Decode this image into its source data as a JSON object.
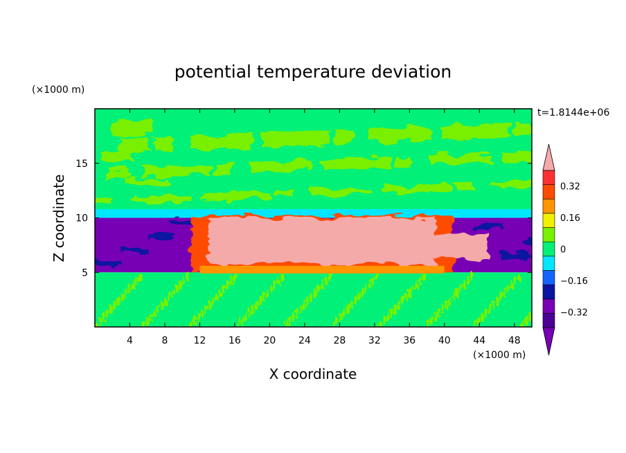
{
  "chart_data": {
    "type": "heatmap",
    "title": "potential temperature deviation",
    "xlabel": "X coordinate",
    "ylabel": "Z coordinate",
    "x_unit": "(×1000 m)",
    "y_unit": "(×1000 m)",
    "time_label": "t=1.8144e+06",
    "xlim": [
      0,
      50
    ],
    "ylim": [
      0,
      20
    ],
    "x_ticks": [
      4,
      8,
      12,
      16,
      20,
      24,
      28,
      32,
      36,
      40,
      44,
      48
    ],
    "y_ticks": [
      5,
      10,
      15
    ],
    "colorbar": {
      "levels": [
        -0.4,
        -0.32,
        -0.24,
        -0.16,
        -0.08,
        0,
        0.08,
        0.16,
        0.24,
        0.32,
        0.4
      ],
      "labels": [
        "0.32",
        "0.16",
        "0",
        "−0.16",
        "−0.32"
      ],
      "label_values": [
        0.32,
        0.16,
        0,
        -0.16,
        -0.32
      ],
      "colors": [
        "#4b0096",
        "#7800b4",
        "#0a14a0",
        "#1464ff",
        "#00e6ff",
        "#00f078",
        "#78f000",
        "#f0f000",
        "#ff9600",
        "#ff4b00",
        "#ff3232"
      ],
      "overflow_high_color": "#f5aaaa",
      "overflow_low_color": "#7800b4"
    },
    "regions": [
      {
        "name": "upper-troposphere",
        "x": [
          0,
          50
        ],
        "z": [
          10.5,
          20
        ],
        "value": 0.04,
        "color": "#00f078"
      },
      {
        "name": "upper-troposphere-streaks",
        "x": [
          0,
          50
        ],
        "z": [
          11,
          19
        ],
        "value": 0.08,
        "color": "#78f000"
      },
      {
        "name": "tropopause-band",
        "x": [
          0,
          50
        ],
        "z": [
          10,
          10.8
        ],
        "value": -0.08,
        "color": "#00e6ff"
      },
      {
        "name": "mid-level-cold-layer",
        "x": [
          0,
          50
        ],
        "z": [
          5,
          10
        ],
        "value": -0.4,
        "color": "#7800b4"
      },
      {
        "name": "warm-core",
        "x": [
          12,
          40
        ],
        "z": [
          5.5,
          10
        ],
        "value": 0.45,
        "color": "#f5aaaa"
      },
      {
        "name": "lower-troposphere",
        "x": [
          0,
          50
        ],
        "z": [
          0,
          5
        ],
        "value": 0.04,
        "color": "#00f078"
      }
    ]
  }
}
